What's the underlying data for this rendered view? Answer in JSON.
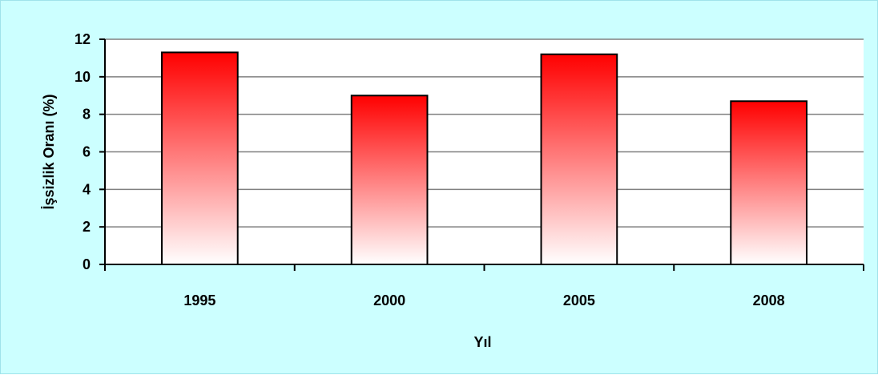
{
  "chart_data": {
    "type": "bar",
    "title": "",
    "xlabel": "Yıl",
    "ylabel": "İşsizlik Oranı (%)",
    "categories": [
      "1995",
      "2000",
      "2005",
      "2008"
    ],
    "values": [
      11.3,
      9.0,
      11.2,
      8.7
    ],
    "ylim": [
      0,
      12
    ],
    "yticks": [
      "0",
      "2",
      "4",
      "6",
      "8",
      "10",
      "12"
    ],
    "grid": true,
    "legend": "none",
    "colors": {
      "background": "#ccffff",
      "plot_area": "#ffffff",
      "bar_top": "#ff0000",
      "bar_bottom": "#ffffff",
      "bar_outline": "#000000",
      "gridline": "#808080"
    }
  }
}
